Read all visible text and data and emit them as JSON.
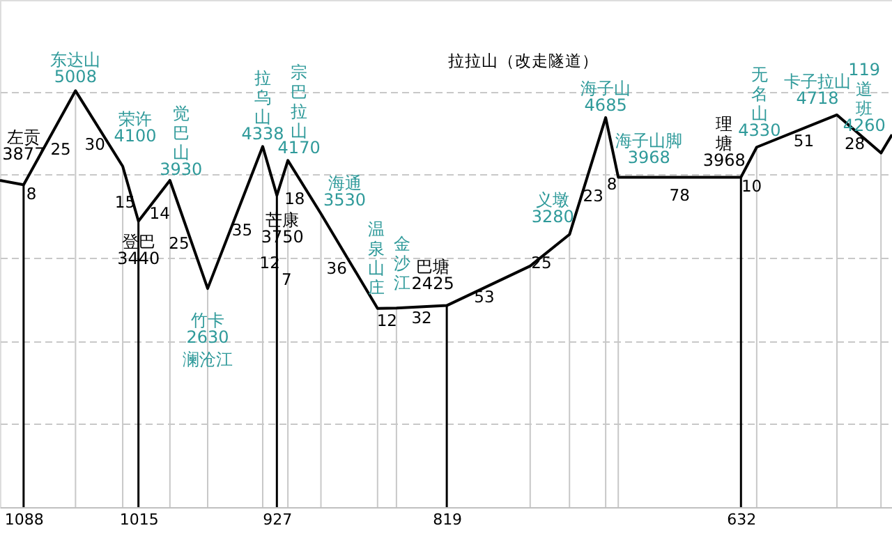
{
  "chart_data": {
    "type": "line",
    "x": [
      1103,
      1088,
      1055,
      1025,
      1015,
      995,
      971,
      936,
      927,
      920,
      899,
      863,
      851,
      819,
      766,
      741,
      718,
      710,
      632,
      622,
      571,
      543,
      536
    ],
    "ref_lines": [
      {
        "axis": "x",
        "value": 1088,
        "color": "#000000"
      },
      {
        "axis": "x",
        "value": 1055,
        "color": "#c8c8c8"
      },
      {
        "axis": "x",
        "value": 1025,
        "color": "#c8c8c8"
      },
      {
        "axis": "x",
        "value": 1015,
        "color": "#000000"
      },
      {
        "axis": "x",
        "value": 995,
        "color": "#c8c8c8"
      },
      {
        "axis": "x",
        "value": 971,
        "color": "#c8c8c8"
      },
      {
        "axis": "x",
        "value": 936,
        "color": "#c8c8c8"
      },
      {
        "axis": "x",
        "value": 927,
        "color": "#000000"
      },
      {
        "axis": "x",
        "value": 920,
        "color": "#c8c8c8"
      },
      {
        "axis": "x",
        "value": 899,
        "color": "#c8c8c8"
      },
      {
        "axis": "x",
        "value": 863,
        "color": "#c8c8c8"
      },
      {
        "axis": "x",
        "value": 851,
        "color": "#c8c8c8"
      },
      {
        "axis": "x",
        "value": 819,
        "color": "#000000"
      },
      {
        "axis": "x",
        "value": 766,
        "color": "#c8c8c8"
      },
      {
        "axis": "x",
        "value": 741,
        "color": "#c8c8c8"
      },
      {
        "axis": "x",
        "value": 718,
        "color": "#c8c8c8"
      },
      {
        "axis": "x",
        "value": 710,
        "color": "#c8c8c8"
      },
      {
        "axis": "x",
        "value": 632,
        "color": "#000000"
      },
      {
        "axis": "x",
        "value": 622,
        "color": "#c8c8c8"
      },
      {
        "axis": "x",
        "value": 571,
        "color": "#c8c8c8"
      },
      {
        "axis": "x",
        "value": 543,
        "color": "#c8c8c8"
      }
    ],
    "xlim": [
      1103,
      536
    ],
    "xticks": [
      1088,
      1015,
      927,
      819,
      632
    ],
    "ylim": [
      0,
      6100
    ],
    "yticks": [
      1000,
      2000,
      3000,
      4000,
      5000
    ],
    "tick_labels": "x",
    "grid": "y",
    "series": [
      {
        "color": "#000000",
        "values": [
          3930,
          3877,
          5008,
          4100,
          3440,
          3930,
          2630,
          4338,
          3750,
          4170,
          3530,
          2390,
          2395,
          2425,
          2900,
          3280,
          4685,
          3968,
          3968,
          4330,
          4718,
          4260,
          4480
        ],
        "value_labels": [
          null,
          "3877",
          "5008",
          "4100",
          "3440",
          "3930",
          "2630",
          "4338",
          "3750",
          "4170",
          "3530",
          null,
          null,
          "2425",
          null,
          "3280",
          "4685",
          "3968",
          "3968",
          "4330",
          "4718",
          "4260",
          null
        ],
        "colors": [
          "#000000",
          "#000000",
          "#2f9a9a",
          "#2f9a9a",
          "#000000",
          "#2f9a9a",
          "#2f9a9a",
          "#2f9a9a",
          "#000000",
          "#2f9a9a",
          "#2f9a9a",
          "#2f9a9a",
          "#2f9a9a",
          "#000000",
          "#000000",
          "#2f9a9a",
          "#2f9a9a",
          "#2f9a9a",
          "#000000",
          "#2f9a9a",
          "#2f9a9a",
          "#2f9a9a",
          "#000000"
        ]
      }
    ],
    "annotations": [
      {
        "text": "左贡",
        "x": 1088,
        "y": 3877
      },
      {
        "text": "东达山",
        "x": 1055,
        "y": 5008
      },
      {
        "text": "荣许",
        "x": 1025,
        "y": 4100
      },
      {
        "text": "登巴",
        "x": 1015,
        "y": 3440
      },
      {
        "text": "觉巴山",
        "x": 995,
        "y": 3930
      },
      {
        "text": "竹卡",
        "x": 971,
        "y": 2630
      },
      {
        "text": "拉乌山",
        "x": 936,
        "y": 4338
      },
      {
        "text": "芒康",
        "x": 927,
        "y": 3750
      },
      {
        "text": "宗巴拉山",
        "x": 920,
        "y": 4170
      },
      {
        "text": "海通",
        "x": 899,
        "y": 3530
      },
      {
        "text": "温泉山庄",
        "x": 863,
        "y": 2390
      },
      {
        "text": "金沙江",
        "x": 851,
        "y": 2395
      },
      {
        "text": "巴塘",
        "x": 819,
        "y": 2425
      },
      {
        "text": "义墩",
        "x": 741,
        "y": 3280
      },
      {
        "text": "海子山",
        "x": 718,
        "y": 4685
      },
      {
        "text": "海子山脚",
        "x": 710,
        "y": 3968
      },
      {
        "text": "理塘",
        "x": 632,
        "y": 3968
      },
      {
        "text": "无名山",
        "x": 622,
        "y": 4330
      },
      {
        "text": "卡子拉山",
        "x": 571,
        "y": 4718
      },
      {
        "text": "119道班",
        "x": 543,
        "y": 4260
      },
      "澜沧江",
      "拉拉山（改走隧道）",
      "8",
      "25",
      "30",
      "15",
      "14",
      "25",
      "35",
      "12",
      "7",
      "18",
      "36",
      "12",
      "32",
      "53",
      "25",
      "23",
      "8",
      "78",
      "10",
      "51",
      "28"
    ]
  }
}
